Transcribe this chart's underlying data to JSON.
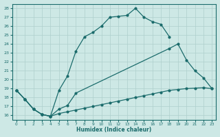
{
  "xlabel": "Humidex (Indice chaleur)",
  "bg_color": "#cde8e5",
  "line_color": "#1a6b6b",
  "grid_color": "#aecfcc",
  "xlim": [
    -0.5,
    23.5
  ],
  "ylim": [
    15.5,
    28.5
  ],
  "xticks": [
    0,
    1,
    2,
    3,
    4,
    5,
    6,
    7,
    8,
    9,
    10,
    11,
    12,
    13,
    14,
    15,
    16,
    17,
    18,
    19,
    20,
    21,
    22,
    23
  ],
  "yticks": [
    16,
    17,
    18,
    19,
    20,
    21,
    22,
    23,
    24,
    25,
    26,
    27,
    28
  ],
  "line1_x": [
    0,
    1,
    2,
    3,
    4,
    5,
    6,
    7,
    8,
    9,
    10,
    11,
    12,
    13,
    14,
    15,
    16,
    17,
    18
  ],
  "line1_y": [
    18.8,
    17.8,
    16.7,
    16.1,
    15.9,
    18.8,
    20.4,
    23.2,
    24.8,
    25.3,
    26.0,
    27.0,
    27.1,
    27.2,
    28.0,
    27.0,
    26.5,
    26.2,
    24.8
  ],
  "line2_x": [
    0,
    1,
    2,
    3,
    4,
    5,
    6,
    7,
    18,
    19,
    20,
    21,
    22,
    23
  ],
  "line2_y": [
    18.8,
    17.8,
    16.7,
    16.1,
    15.9,
    16.7,
    17.1,
    18.5,
    23.5,
    24.0,
    22.2,
    21.0,
    20.2,
    19.0
  ],
  "line3_x": [
    0,
    1,
    2,
    3,
    4,
    5,
    6,
    7,
    8,
    9,
    10,
    11,
    12,
    13,
    14,
    15,
    16,
    17,
    18,
    19,
    20,
    21,
    22,
    23
  ],
  "line3_y": [
    18.8,
    17.8,
    16.7,
    16.1,
    15.9,
    16.2,
    16.4,
    16.6,
    16.8,
    17.0,
    17.2,
    17.4,
    17.6,
    17.8,
    18.0,
    18.2,
    18.4,
    18.6,
    18.8,
    18.9,
    19.0,
    19.05,
    19.1,
    19.0
  ]
}
